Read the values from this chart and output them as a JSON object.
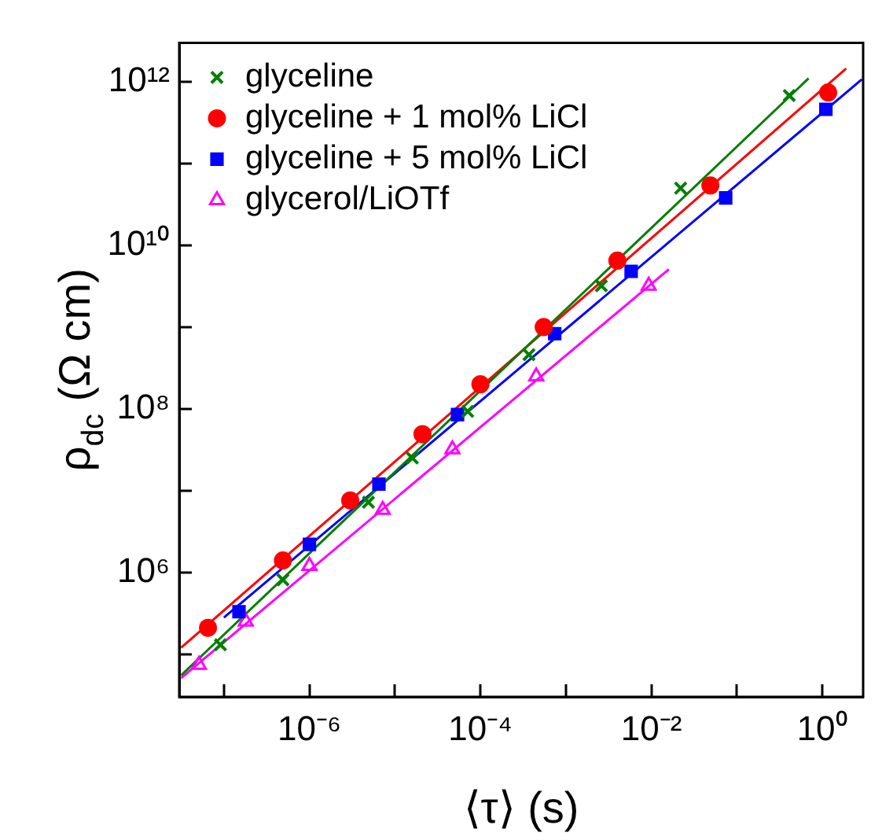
{
  "chart_data": {
    "type": "scatter",
    "xlabel": "⟨τ⟩ (s)",
    "ylabel": "ρ$_{dc}$ (Ω cm)",
    "log": "xy",
    "grid": false,
    "legend": "top left",
    "xlim": [
      3e-08,
      3
    ],
    "ylim": [
      30000.0,
      3000000000000.0
    ],
    "xticks": [
      {
        "value": 1e-07,
        "label": null
      },
      {
        "value": 1e-06,
        "label": "10⁻⁶"
      },
      {
        "value": 1e-05,
        "label": null
      },
      {
        "value": 0.0001,
        "label": "10⁻⁴"
      },
      {
        "value": 0.001,
        "label": null
      },
      {
        "value": 0.01,
        "label": "10⁻²"
      },
      {
        "value": 0.1,
        "label": null
      },
      {
        "value": 1,
        "label": "10⁰"
      }
    ],
    "yticks": [
      {
        "value": 100000.0,
        "label": null
      },
      {
        "value": 1000000.0,
        "label": "10⁶"
      },
      {
        "value": 10000000.0,
        "label": null
      },
      {
        "value": 100000000.0,
        "label": "10⁸"
      },
      {
        "value": 1000000000.0,
        "label": null
      },
      {
        "value": 10000000000.0,
        "label": "10¹⁰"
      },
      {
        "value": 100000000000.0,
        "label": null
      },
      {
        "value": 1000000000000.0,
        "label": "10¹²"
      }
    ],
    "series": [
      {
        "name": "glyceline",
        "color": "#007f00",
        "marker": "cross",
        "x": [
          9.1e-08,
          4.9e-07,
          4.9e-06,
          1.6e-05,
          7.1e-05,
          0.00037,
          0.0026,
          0.022,
          0.41
        ],
        "values": [
          130000.0,
          810000.0,
          7200000.0,
          25000000.0,
          93000000.0,
          460000000.0,
          3200000000.0,
          50000000000.0,
          680000000000.0
        ]
      },
      {
        "name": "glyceline + 1 mol% LiCl",
        "color": "#ff0000",
        "marker": "circle",
        "x": [
          6.5e-08,
          4.9e-07,
          3e-06,
          2.1e-05,
          0.0001,
          0.00055,
          0.004,
          0.049,
          1.17
        ],
        "values": [
          210000.0,
          1400000.0,
          7600000.0,
          49000000.0,
          200000000.0,
          1000000000.0,
          6500000000.0,
          54000000000.0,
          740000000000.0
        ]
      },
      {
        "name": "glyceline + 5 mol% LiCl",
        "color": "#0000ff",
        "marker": "square",
        "x": [
          1.5e-07,
          1e-06,
          6.5e-06,
          5.4e-05,
          0.00074,
          0.0058,
          0.074,
          1.1
        ],
        "values": [
          330000.0,
          2200000.0,
          12000000.0,
          85000000.0,
          830000000.0,
          4800000000.0,
          38000000000.0,
          460000000000.0
        ]
      },
      {
        "name": "glycerol/LiOTf",
        "color": "#ff00ff",
        "marker": "triangle",
        "x": [
          5.1e-08,
          1.8e-07,
          1e-06,
          7.2e-06,
          4.7e-05,
          0.00045,
          0.0093
        ],
        "values": [
          74000.0,
          250000.0,
          1200000.0,
          5800000.0,
          32000000.0,
          250000000.0,
          3200000000.0
        ]
      },
      {
        "type": "line",
        "color": "#007f00",
        "marker": "none",
        "x": [
          3.16e-08,
          0.69
        ],
        "values": [
          55000.0,
          1100000000000.0
        ]
      },
      {
        "type": "line",
        "color": "#ff0000",
        "marker": "none",
        "x": [
          3.16e-08,
          1.9
        ],
        "values": [
          120000.0,
          1450000000000.0
        ]
      },
      {
        "type": "line",
        "color": "#0000ff",
        "marker": "none",
        "x": [
          1e-07,
          2.9
        ],
        "values": [
          280000.0,
          1070000000000.0
        ]
      },
      {
        "type": "line",
        "color": "#ff00ff",
        "marker": "none",
        "x": [
          3.16e-08,
          0.016
        ],
        "values": [
          51000.0,
          5100000000.0
        ]
      }
    ]
  }
}
